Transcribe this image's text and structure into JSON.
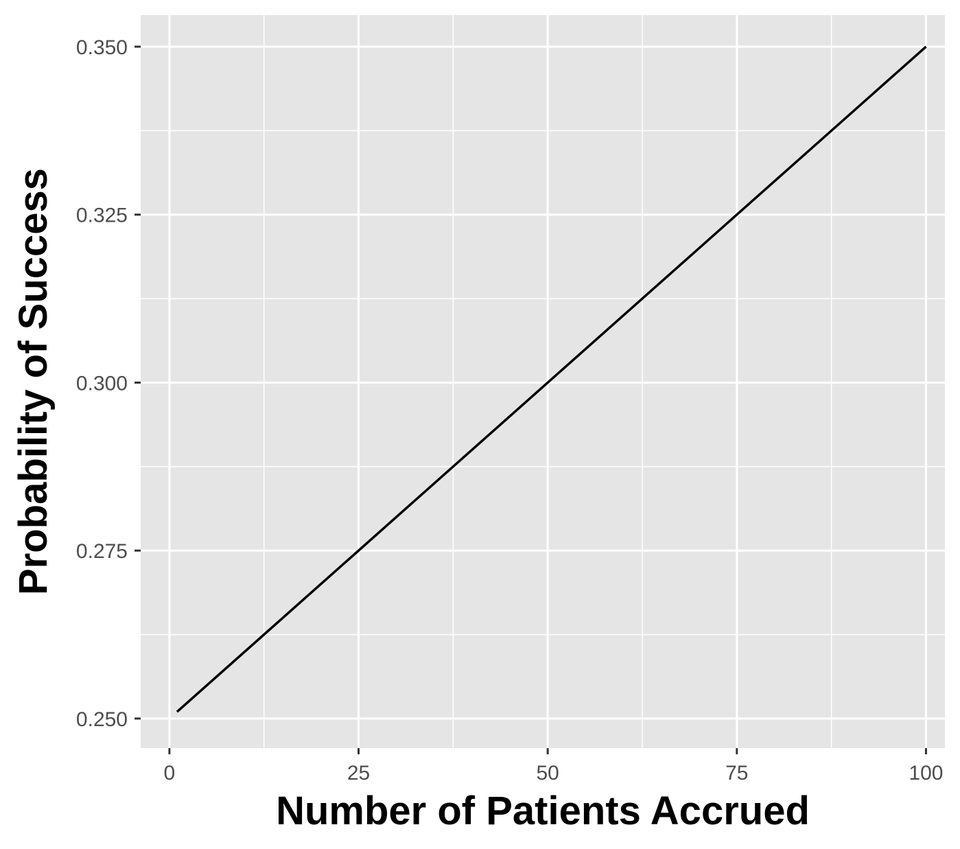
{
  "chart_data": {
    "type": "line",
    "title": "",
    "xlabel": "Number of Patients Accrued",
    "ylabel": "Probability of Success",
    "xlim": [
      -3.8,
      102.5
    ],
    "ylim": [
      0.2456,
      0.3547
    ],
    "x_ticks": [
      0,
      25,
      50,
      75,
      100
    ],
    "x_tick_labels": [
      "0",
      "25",
      "50",
      "75",
      "100"
    ],
    "y_ticks": [
      0.25,
      0.275,
      0.3,
      0.325,
      0.35
    ],
    "y_tick_labels": [
      "0.250",
      "0.275",
      "0.300",
      "0.325",
      "0.350"
    ],
    "grid": true,
    "legend": "none",
    "series": [
      {
        "color": "#000000",
        "x": [
          1,
          100
        ],
        "y": [
          0.251,
          0.35
        ]
      }
    ],
    "colors": {
      "panel_background": "#e5e5e5",
      "grid": "#ffffff",
      "line": "#000000",
      "tick_text": "#4d4d4d",
      "axis_title": "#000000"
    }
  }
}
